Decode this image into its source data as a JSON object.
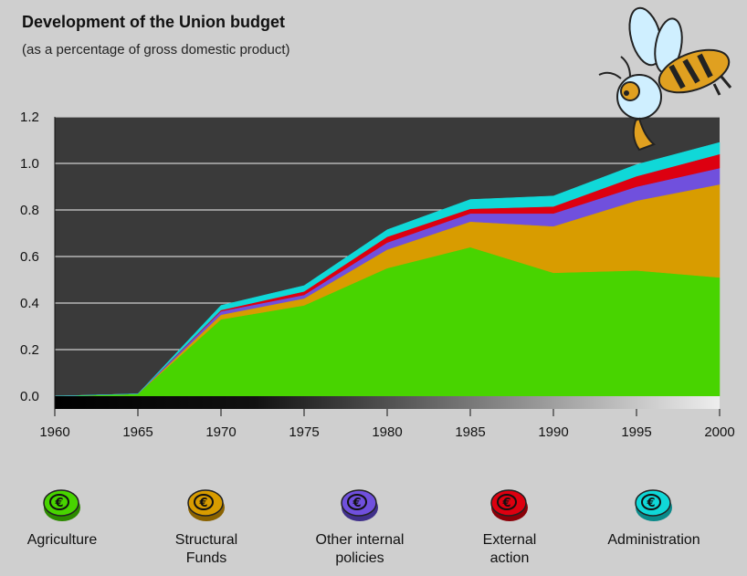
{
  "title": "Development of the Union budget",
  "subtitle": "(as a percentage of gross domestic product)",
  "chart_data": {
    "type": "area",
    "stacked": true,
    "x": [
      1960,
      1965,
      1970,
      1975,
      1980,
      1985,
      1990,
      1995,
      2000
    ],
    "ylim": [
      0,
      1.2
    ],
    "yticks": [
      "0.0",
      "0.2",
      "0.4",
      "0.6",
      "0.8",
      "1.0",
      "1.2"
    ],
    "xticks": [
      "1960",
      "1965",
      "1970",
      "1975",
      "1980",
      "1985",
      "1990",
      "1995",
      "2000"
    ],
    "grid": true,
    "legend_position": "bottom",
    "series": [
      {
        "name": "Agriculture",
        "color": "#48d400",
        "values": [
          0.0,
          0.01,
          0.33,
          0.39,
          0.55,
          0.64,
          0.53,
          0.54,
          0.51
        ]
      },
      {
        "name": "Structural\nFunds",
        "color": "#d89c00",
        "values": [
          0.0,
          0.0,
          0.02,
          0.03,
          0.08,
          0.11,
          0.2,
          0.3,
          0.4
        ]
      },
      {
        "name": "Other internal\npolicies",
        "color": "#7050dd",
        "values": [
          0.0,
          0.0,
          0.015,
          0.015,
          0.03,
          0.035,
          0.055,
          0.06,
          0.07
        ]
      },
      {
        "name": "External\naction",
        "color": "#dd0010",
        "values": [
          0.0,
          0.0,
          0.005,
          0.015,
          0.025,
          0.02,
          0.03,
          0.045,
          0.06
        ]
      },
      {
        "name": "Administration",
        "color": "#10d8d8",
        "values": [
          0.0,
          0.0,
          0.02,
          0.025,
          0.03,
          0.04,
          0.045,
          0.05,
          0.05
        ]
      }
    ]
  },
  "legend": [
    {
      "label": "Agriculture",
      "color": "#48d400",
      "dark": "#2c8a00"
    },
    {
      "label": "Structural\nFunds",
      "color": "#d89c00",
      "dark": "#8a6200"
    },
    {
      "label": "Other internal\npolicies",
      "color": "#7050dd",
      "dark": "#40308a"
    },
    {
      "label": "External\naction",
      "color": "#dd0010",
      "dark": "#8a0008"
    },
    {
      "label": "Administration",
      "color": "#10d8d8",
      "dark": "#0a8a8a"
    }
  ]
}
